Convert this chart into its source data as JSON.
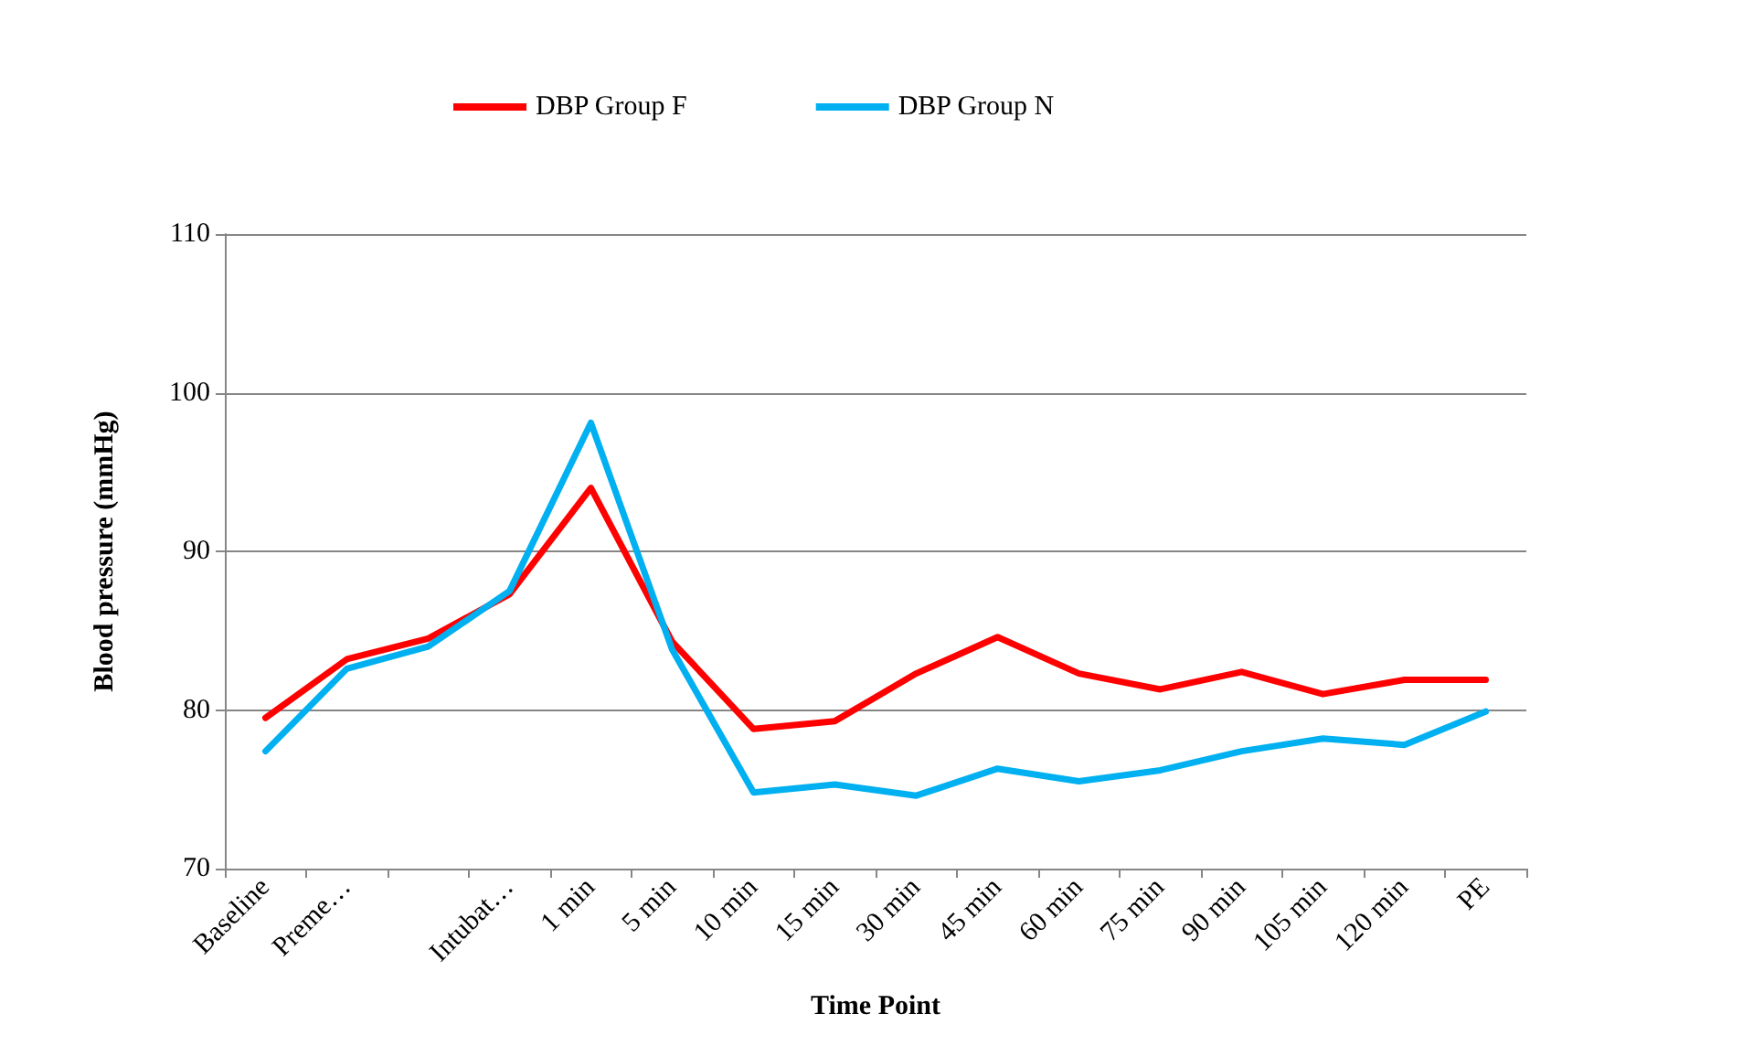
{
  "chart_data": {
    "type": "line",
    "xlabel": "Time Point",
    "ylabel": "Blood pressure (mmHg)",
    "categories": [
      "Baseline",
      "Preme…",
      null,
      "Intubat…",
      "1 min",
      "5 min",
      "10 min",
      "15 min",
      "30 min",
      "45 min",
      "60 min",
      "75 min",
      "90 min",
      "105 min",
      "120 min",
      "PE"
    ],
    "series": [
      {
        "name": "DBP Group F",
        "color": "#ff0000",
        "values": [
          79.5,
          83.2,
          84.5,
          87.3,
          94,
          84.3,
          78.8,
          79.3,
          82.3,
          84.6,
          82.3,
          81.3,
          82.4,
          81,
          81.9,
          81.9
        ]
      },
      {
        "name": "DBP Group N",
        "color": "#00b0f0",
        "values": [
          77.4,
          82.6,
          84,
          87.5,
          98.1,
          83.8,
          74.8,
          75.3,
          74.6,
          76.3,
          75.5,
          76.2,
          77.4,
          78.2,
          77.8,
          79.9
        ]
      }
    ],
    "ylim": [
      70,
      110
    ],
    "yticks": [
      70,
      80,
      90,
      100,
      110
    ],
    "grid": "y",
    "legend": "top",
    "marker": "none",
    "line_style": "solid"
  }
}
